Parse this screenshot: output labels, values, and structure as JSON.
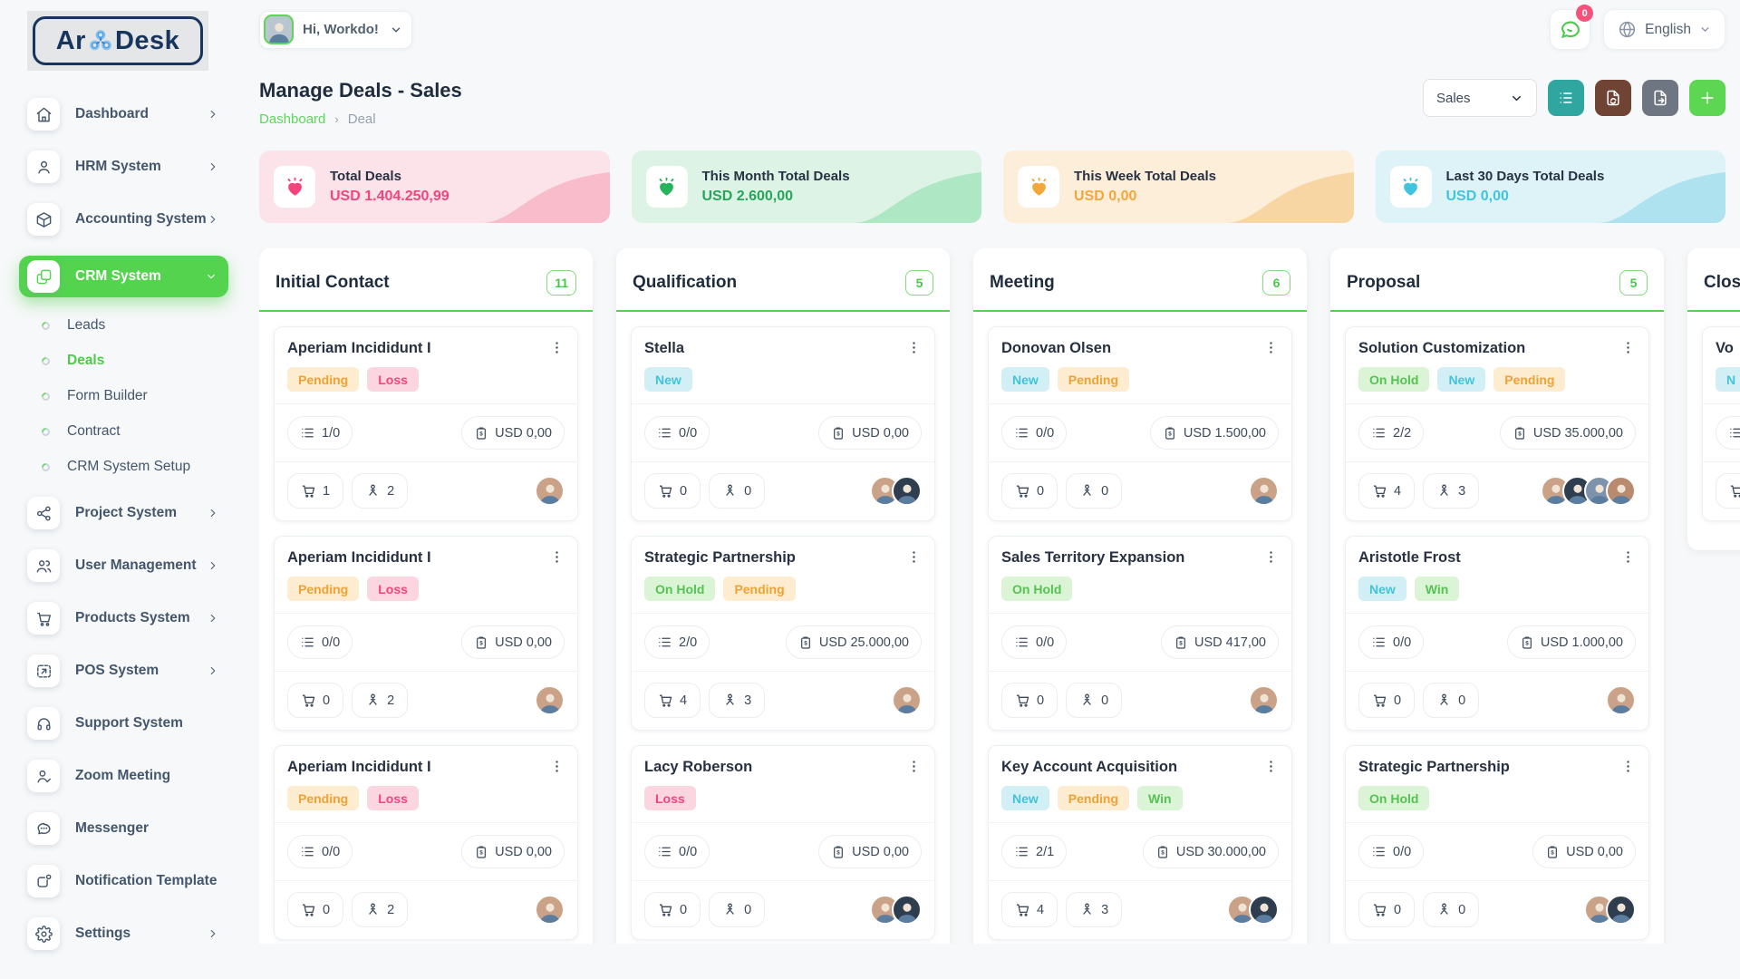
{
  "app": {
    "logo": {
      "left": "Ar",
      "right": "Desk"
    }
  },
  "header": {
    "greeting": "Hi, Workdo!",
    "notification_count": "0",
    "language": "English",
    "icons": [
      "user-avatar",
      "chat-icon",
      "globe-icon",
      "chevron-down-icon"
    ]
  },
  "sidebar": {
    "items": [
      {
        "label": "Dashboard",
        "icon": "home",
        "has_children": true
      },
      {
        "label": "HRM System",
        "icon": "user",
        "has_children": true
      },
      {
        "label": "Accounting System",
        "icon": "cube",
        "has_children": true
      },
      {
        "label": "CRM System",
        "icon": "windows",
        "has_children": true,
        "active": true,
        "expanded": true,
        "submenu": [
          {
            "label": "Leads"
          },
          {
            "label": "Deals",
            "active": true
          },
          {
            "label": "Form Builder"
          },
          {
            "label": "Contract"
          },
          {
            "label": "CRM System Setup"
          }
        ]
      },
      {
        "label": "Project System",
        "icon": "share-nodes",
        "has_children": true
      },
      {
        "label": "User Management",
        "icon": "users",
        "has_children": true
      },
      {
        "label": "Products System",
        "icon": "cart",
        "has_children": true
      },
      {
        "label": "POS System",
        "icon": "pos",
        "has_children": true
      },
      {
        "label": "Support System",
        "icon": "headphones",
        "has_children": false
      },
      {
        "label": "Zoom Meeting",
        "icon": "user-check",
        "has_children": false
      },
      {
        "label": "Messenger",
        "icon": "chat-bubble",
        "has_children": false
      },
      {
        "label": "Notification Template",
        "icon": "notification",
        "has_children": false
      },
      {
        "label": "Settings",
        "icon": "gear",
        "has_children": true
      }
    ]
  },
  "page": {
    "title": "Manage Deals - Sales",
    "breadcrumb": [
      "Dashboard",
      "Deal"
    ]
  },
  "toolbar": {
    "select_value": "Sales",
    "buttons": [
      {
        "icon": "list-icon",
        "color": "#2fa69f"
      },
      {
        "icon": "file-sync-icon",
        "color": "#6f4434"
      },
      {
        "icon": "file-export-icon",
        "color": "#6e7681"
      },
      {
        "icon": "plus-icon",
        "color": "#5cd653"
      }
    ]
  },
  "summary_cards": [
    {
      "title": "Total Deals",
      "value": "USD 1.404.250,99",
      "icon": "handshake",
      "theme": {
        "bg": "#fce3e9",
        "wave": "#f9bccb",
        "value_color": "#f3447b",
        "icon_color": "#f3447b"
      }
    },
    {
      "title": "This Month Total Deals",
      "value": "USD 2.600,00",
      "icon": "handshake",
      "theme": {
        "bg": "#dcf3e5",
        "wave": "#aee7c4",
        "value_color": "#27a55b",
        "icon_color": "#27b35b"
      }
    },
    {
      "title": "This Week Total Deals",
      "value": "USD 0,00",
      "icon": "handshake",
      "theme": {
        "bg": "#fdeeda",
        "wave": "#f7d6a4",
        "value_color": "#f2a73b",
        "icon_color": "#f2a73b"
      }
    },
    {
      "title": "Last 30 Days Total Deals",
      "value": "USD 0,00",
      "icon": "handshake",
      "theme": {
        "bg": "#def3f8",
        "wave": "#aee2ef",
        "value_color": "#41c4dd",
        "icon_color": "#41c4dd"
      }
    }
  ],
  "board": {
    "columns": [
      {
        "name": "Initial Contact",
        "count": "11",
        "more_cards_peek": true,
        "cards": [
          {
            "title": "Aperiam Incididunt I",
            "badges": [
              [
                "Pending",
                "pending"
              ],
              [
                "Loss",
                "loss"
              ]
            ],
            "tasks": "1/0",
            "value": "USD 0,00",
            "products": "1",
            "users": "2",
            "avatars": 1
          },
          {
            "title": "Aperiam Incididunt I",
            "badges": [
              [
                "Pending",
                "pending"
              ],
              [
                "Loss",
                "loss"
              ]
            ],
            "tasks": "0/0",
            "value": "USD 0,00",
            "products": "0",
            "users": "2",
            "avatars": 1
          },
          {
            "title": "Aperiam Incididunt I",
            "badges": [
              [
                "Pending",
                "pending"
              ],
              [
                "Loss",
                "loss"
              ]
            ],
            "tasks": "0/0",
            "value": "USD 0,00",
            "products": "0",
            "users": "2",
            "avatars": 1
          }
        ]
      },
      {
        "name": "Qualification",
        "count": "5",
        "more_cards_peek": true,
        "cards": [
          {
            "title": "Stella",
            "badges": [
              [
                "New",
                "new"
              ]
            ],
            "tasks": "0/0",
            "value": "USD 0,00",
            "products": "0",
            "users": "0",
            "avatars": 2
          },
          {
            "title": "Strategic Partnership",
            "badges": [
              [
                "On Hold",
                "onhold"
              ],
              [
                "Pending",
                "pending"
              ]
            ],
            "tasks": "2/0",
            "value": "USD 25.000,00",
            "products": "4",
            "users": "3",
            "avatars": 1
          },
          {
            "title": "Lacy Roberson",
            "badges": [
              [
                "Loss",
                "loss"
              ]
            ],
            "tasks": "0/0",
            "value": "USD 0,00",
            "products": "0",
            "users": "0",
            "avatars": 2
          }
        ]
      },
      {
        "name": "Meeting",
        "count": "6",
        "more_cards_peek": true,
        "cards": [
          {
            "title": "Donovan Olsen",
            "badges": [
              [
                "New",
                "new"
              ],
              [
                "Pending",
                "pending"
              ]
            ],
            "tasks": "0/0",
            "value": "USD 1.500,00",
            "products": "0",
            "users": "0",
            "avatars": 1
          },
          {
            "title": "Sales Territory Expansion",
            "badges": [
              [
                "On Hold",
                "onhold"
              ]
            ],
            "tasks": "0/0",
            "value": "USD 417,00",
            "products": "0",
            "users": "0",
            "avatars": 1
          },
          {
            "title": "Key Account Acquisition",
            "badges": [
              [
                "New",
                "new"
              ],
              [
                "Pending",
                "pending"
              ],
              [
                "Win",
                "win"
              ]
            ],
            "tasks": "2/1",
            "value": "USD 30.000,00",
            "products": "4",
            "users": "3",
            "avatars": 2
          }
        ]
      },
      {
        "name": "Proposal",
        "count": "5",
        "more_cards_peek": true,
        "cards": [
          {
            "title": "Solution Customization",
            "badges": [
              [
                "On Hold",
                "onhold"
              ],
              [
                "New",
                "new"
              ],
              [
                "Pending",
                "pending"
              ]
            ],
            "tasks": "2/2",
            "value": "USD 35.000,00",
            "products": "4",
            "users": "3",
            "avatars": 4
          },
          {
            "title": "Aristotle Frost",
            "badges": [
              [
                "New",
                "new"
              ],
              [
                "Win",
                "win"
              ]
            ],
            "tasks": "0/0",
            "value": "USD 1.000,00",
            "products": "0",
            "users": "0",
            "avatars": 1
          },
          {
            "title": "Strategic Partnership",
            "badges": [
              [
                "On Hold",
                "onhold"
              ]
            ],
            "tasks": "0/0",
            "value": "USD 0,00",
            "products": "0",
            "users": "0",
            "avatars": 2
          }
        ]
      },
      {
        "name": "Clos",
        "count": "",
        "more_cards_peek": false,
        "cards": [
          {
            "title": "Vo",
            "badges": [
              [
                "N",
                "new"
              ]
            ],
            "tasks": "",
            "value": "",
            "products": "",
            "users": "",
            "avatars": 0
          }
        ]
      }
    ]
  }
}
